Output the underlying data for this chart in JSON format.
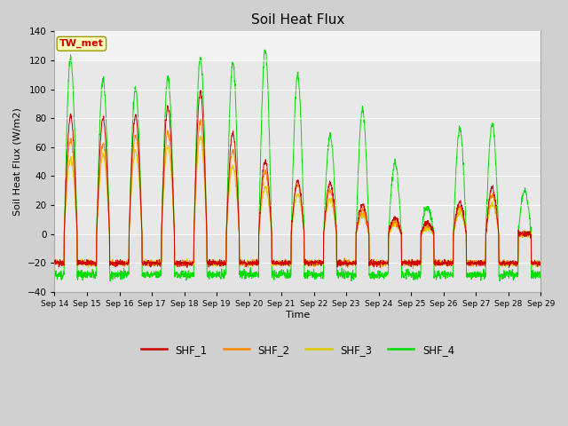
{
  "title": "Soil Heat Flux",
  "ylabel": "Soil Heat Flux (W/m2)",
  "xlabel": "Time",
  "ylim": [
    -40,
    140
  ],
  "yticks": [
    -40,
    -20,
    0,
    20,
    40,
    60,
    80,
    100,
    120,
    140
  ],
  "fig_bg_color": "#d0d0d0",
  "plot_bg_color": "#e8e8e8",
  "grid_color": "#ffffff",
  "colors": {
    "SHF_1": "#cc0000",
    "SHF_2": "#ff8800",
    "SHF_3": "#ddcc00",
    "SHF_4": "#00dd00"
  },
  "annotation_text": "TW_met",
  "annotation_color": "#cc0000",
  "annotation_bg": "#ffffbb",
  "annotation_border": "#999900",
  "n_days": 15,
  "start_day": 14,
  "peaks_SHF1": [
    82,
    80,
    82,
    88,
    98,
    70,
    50,
    37,
    35,
    20,
    11,
    8,
    22,
    32,
    0
  ],
  "peaks_SHF2": [
    65,
    62,
    68,
    70,
    78,
    58,
    43,
    34,
    30,
    16,
    9,
    6,
    19,
    27,
    0
  ],
  "peaks_SHF3": [
    52,
    54,
    57,
    60,
    67,
    47,
    32,
    27,
    24,
    13,
    7,
    4,
    15,
    21,
    0
  ],
  "peaks_SHF4": [
    122,
    107,
    100,
    108,
    122,
    118,
    127,
    110,
    68,
    86,
    49,
    19,
    72,
    77,
    30
  ],
  "night_SHF1": -20,
  "night_SHF2": -20,
  "night_SHF3": -20,
  "night_SHF4": -28,
  "points_per_day": 144,
  "lw": 0.7
}
